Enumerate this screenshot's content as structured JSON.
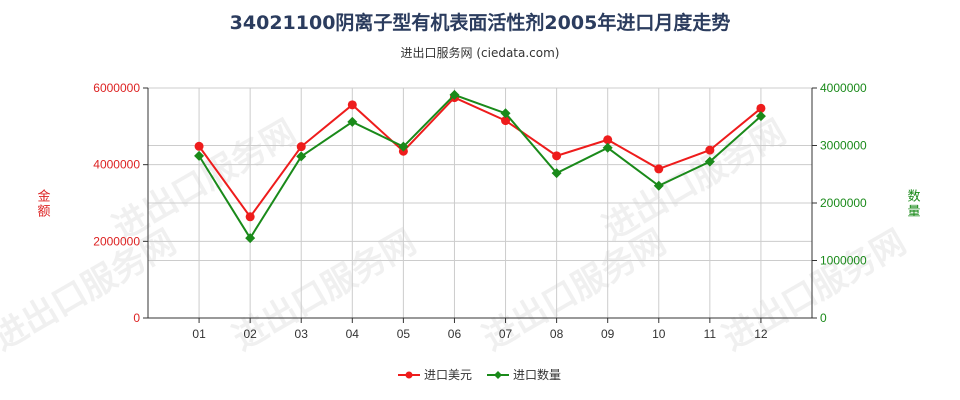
{
  "title": "34021100阴离子型有机表面活性剂2005年进口月度走势",
  "subtitle": "进出口服务网 (ciedata.com)",
  "watermark": "进出口服务网",
  "colors": {
    "amount": "#ee1c1c",
    "quantity": "#1a8a1a",
    "axis_left": "#dd2222",
    "axis_right": "#1a8a1a",
    "grid": "#cccccc"
  },
  "chart_data": {
    "type": "line",
    "categories": [
      "01",
      "02",
      "03",
      "04",
      "05",
      "06",
      "07",
      "08",
      "09",
      "10",
      "11",
      "12"
    ],
    "left_axis": {
      "label": "金额",
      "range": [
        0,
        6000000
      ],
      "ticks": [
        0,
        2000000,
        4000000,
        6000000
      ],
      "tick_labels": [
        "0",
        "2000000",
        "4000000",
        "6000000"
      ]
    },
    "right_axis": {
      "label": "数量",
      "range": [
        0,
        4000000
      ],
      "ticks": [
        0,
        1000000,
        2000000,
        3000000,
        4000000
      ],
      "tick_labels": [
        "0",
        "1000000",
        "2000000",
        "3000000",
        "4000000"
      ]
    },
    "series": [
      {
        "name": "进口美元",
        "axis": "left",
        "color": "#ee1c1c",
        "marker": "circle",
        "values": [
          4480000,
          2640000,
          4470000,
          5560000,
          4350000,
          5750000,
          5150000,
          4230000,
          4650000,
          3890000,
          4380000,
          5470000
        ]
      },
      {
        "name": "进口数量",
        "axis": "right",
        "color": "#1a8a1a",
        "marker": "diamond",
        "values": [
          2820000,
          1390000,
          2810000,
          3410000,
          2980000,
          3880000,
          3560000,
          2520000,
          2960000,
          2300000,
          2720000,
          3510000
        ]
      }
    ],
    "grid": true,
    "legend_position": "bottom-center"
  }
}
